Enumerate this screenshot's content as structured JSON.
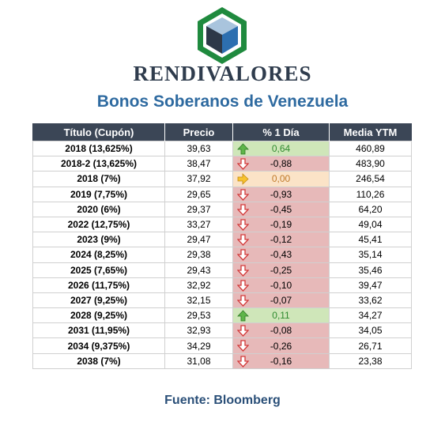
{
  "brand": "RENDIVALORES",
  "subtitle": "Bonos Soberanos de Venezuela",
  "source": "Fuente: Bloomberg",
  "colors": {
    "up": "#cfe6b9",
    "down": "#e7b9b9",
    "flat": "#fbe3c7",
    "header": "#3b4656"
  },
  "table": {
    "headers": [
      "Título (Cupón)",
      "Precio",
      "% 1 Día",
      "Media YTM"
    ],
    "rows": [
      {
        "titulo": "2018 (13,625%)",
        "precio": "39,63",
        "cambio": "0,64",
        "ytm": "460,89",
        "trend": "up"
      },
      {
        "titulo": "2018-2 (13,625%)",
        "precio": "38,47",
        "cambio": "-0,88",
        "ytm": "483,90",
        "trend": "down"
      },
      {
        "titulo": "2018 (7%)",
        "precio": "37,92",
        "cambio": "0,00",
        "ytm": "246,54",
        "trend": "flat"
      },
      {
        "titulo": "2019 (7,75%)",
        "precio": "29,65",
        "cambio": "-0,93",
        "ytm": "110,26",
        "trend": "down"
      },
      {
        "titulo": "2020 (6%)",
        "precio": "29,37",
        "cambio": "-0,45",
        "ytm": "64,20",
        "trend": "down"
      },
      {
        "titulo": "2022 (12,75%)",
        "precio": "33,27",
        "cambio": "-0,19",
        "ytm": "49,04",
        "trend": "down"
      },
      {
        "titulo": "2023 (9%)",
        "precio": "29,47",
        "cambio": "-0,12",
        "ytm": "45,41",
        "trend": "down"
      },
      {
        "titulo": "2024 (8,25%)",
        "precio": "29,38",
        "cambio": "-0,43",
        "ytm": "35,14",
        "trend": "down"
      },
      {
        "titulo": "2025 (7,65%)",
        "precio": "29,43",
        "cambio": "-0,25",
        "ytm": "35,46",
        "trend": "down"
      },
      {
        "titulo": "2026 (11,75%)",
        "precio": "32,92",
        "cambio": "-0,10",
        "ytm": "39,47",
        "trend": "down"
      },
      {
        "titulo": "2027 (9,25%)",
        "precio": "32,15",
        "cambio": "-0,07",
        "ytm": "33,62",
        "trend": "down"
      },
      {
        "titulo": "2028 (9,25%)",
        "precio": "29,53",
        "cambio": "0,11",
        "ytm": "34,27",
        "trend": "up"
      },
      {
        "titulo": "2031 (11,95%)",
        "precio": "32,93",
        "cambio": "-0,08",
        "ytm": "34,05",
        "trend": "down"
      },
      {
        "titulo": "2034 (9,375%)",
        "precio": "34,29",
        "cambio": "-0,26",
        "ytm": "26,71",
        "trend": "down"
      },
      {
        "titulo": "2038 (7%)",
        "precio": "31,08",
        "cambio": "-0,16",
        "ytm": "23,38",
        "trend": "down"
      }
    ]
  }
}
